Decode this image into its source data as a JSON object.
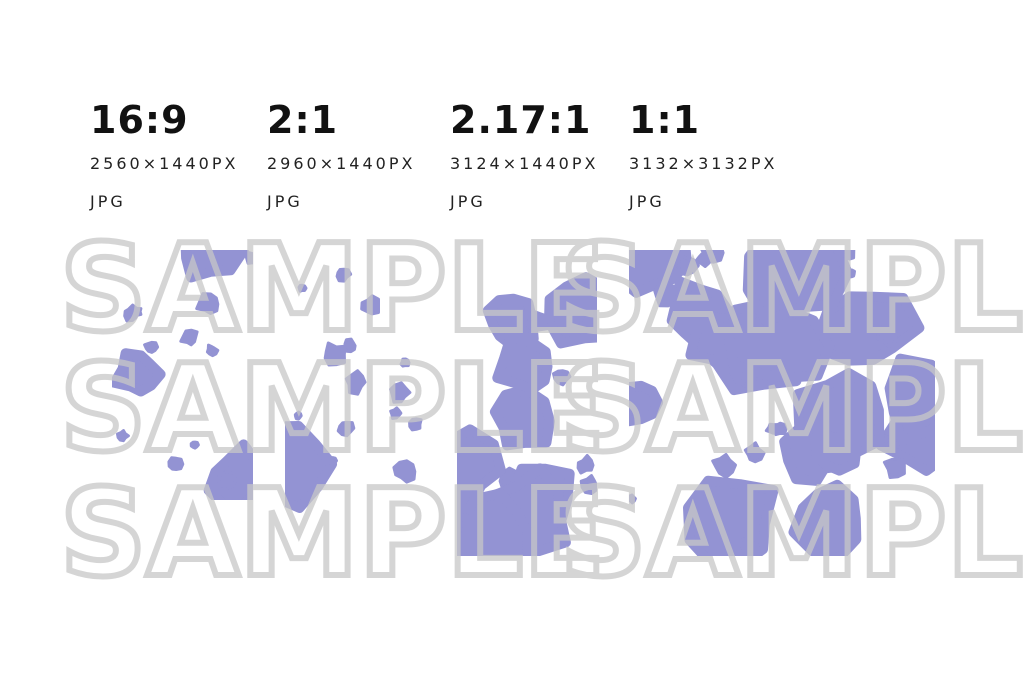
{
  "colors": {
    "pattern": "#9393d3",
    "watermark": "#c8c8c8"
  },
  "watermark": "SAMPLE",
  "variants": [
    {
      "ratio": "16:9",
      "size": "2560×1440PX",
      "format": "JPG"
    },
    {
      "ratio": "2:1",
      "size": "2960×1440PX",
      "format": "JPG"
    },
    {
      "ratio": "2.17:1",
      "size": "3124×1440PX",
      "format": "JPG"
    },
    {
      "ratio": "1:1",
      "size": "3132×3132PX",
      "format": "JPG"
    }
  ]
}
